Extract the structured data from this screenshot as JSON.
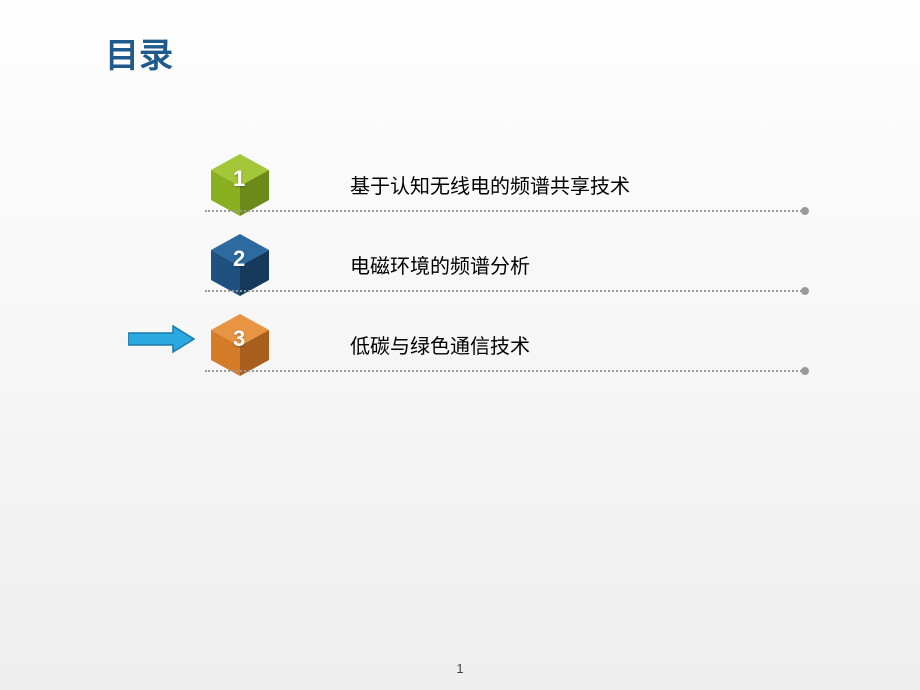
{
  "title": {
    "text": "目录",
    "color": "#1f5a8c",
    "fontsize": 34
  },
  "items": [
    {
      "number": "1",
      "label": "基于认知无线电的频谱共享技术",
      "cube_light": "#a4c639",
      "cube_mid": "#8ab022",
      "cube_dark": "#6b8a1a"
    },
    {
      "number": "2",
      "label": "电磁环境的频谱分析",
      "cube_light": "#2d6aa0",
      "cube_mid": "#1e5180",
      "cube_dark": "#153a5c"
    },
    {
      "number": "3",
      "label": "低碳与绿色通信技术",
      "cube_light": "#e89543",
      "cube_mid": "#d47c28",
      "cube_dark": "#a85f1d"
    }
  ],
  "arrow": {
    "visible": true,
    "target_index": 2,
    "fill": "#29a9e0",
    "stroke": "#1a7ba8"
  },
  "dotted_line_color": "#9a9a9a",
  "page_number": "1",
  "background": "#fefefe"
}
